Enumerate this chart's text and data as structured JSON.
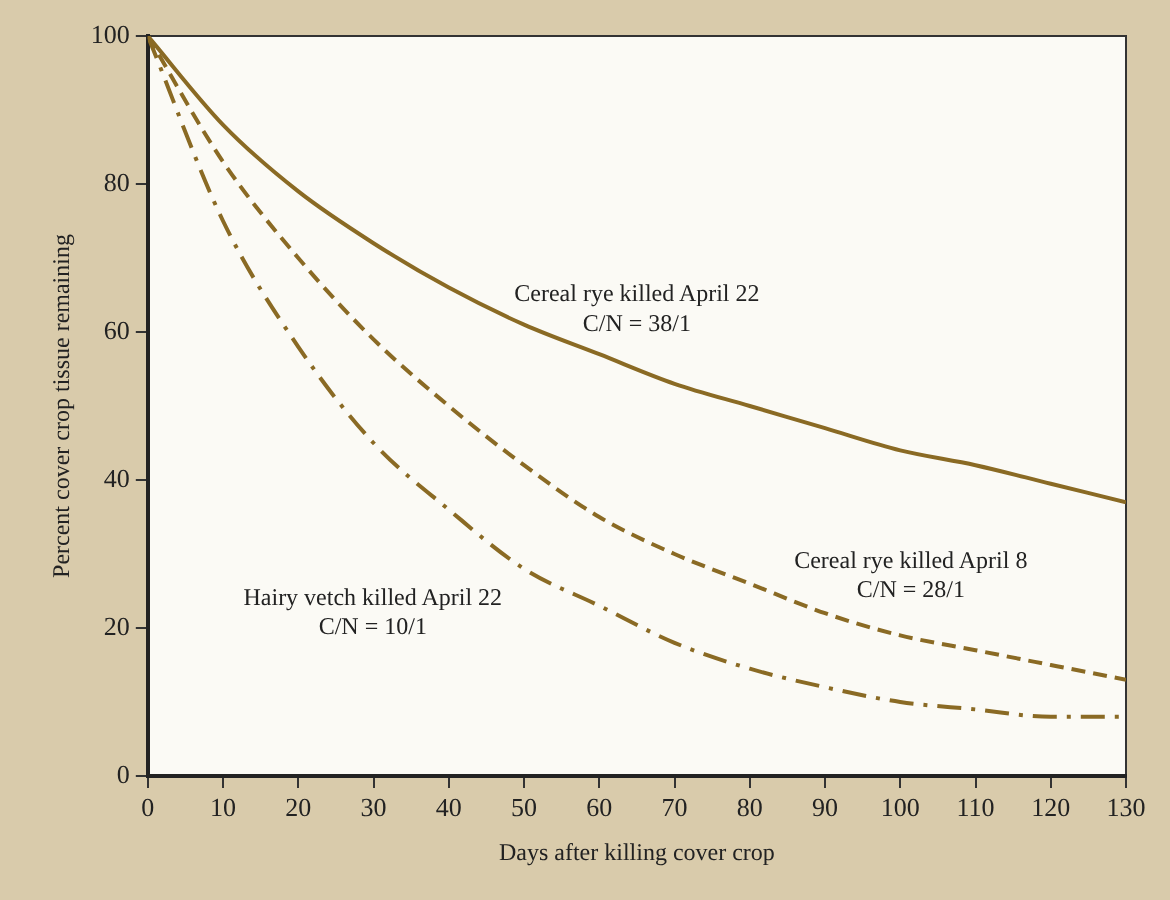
{
  "chart_data": {
    "type": "line",
    "xlabel": "Days after killing cover crop",
    "ylabel": "Percent cover crop tissue remaining",
    "x": [
      0,
      10,
      20,
      30,
      40,
      50,
      60,
      70,
      80,
      90,
      100,
      110,
      120,
      130
    ],
    "series": [
      {
        "color": "#8a6a24",
        "line_style": "solid",
        "values": [
          100,
          88,
          79,
          72,
          66,
          61,
          57,
          53,
          50,
          47,
          44,
          42,
          39.5,
          37
        ]
      },
      {
        "color": "#8a6a24",
        "line_style": "dashed",
        "values": [
          100,
          83,
          70,
          59,
          50,
          42,
          35,
          30,
          26,
          22,
          19,
          17,
          15,
          13
        ]
      },
      {
        "color": "#8a6a24",
        "line_style": "dashdot",
        "values": [
          100,
          75,
          58,
          45,
          36,
          28,
          23,
          18,
          14.5,
          12,
          10,
          9,
          8,
          8
        ]
      }
    ],
    "xlim": [
      0,
      130
    ],
    "xticks": [
      0,
      10,
      20,
      30,
      40,
      50,
      60,
      70,
      80,
      90,
      100,
      110,
      120,
      130
    ],
    "ylim": [
      0,
      100
    ],
    "yticks": [
      0,
      20,
      40,
      60,
      80,
      100
    ],
    "grid": false,
    "legend": false,
    "marker": "none",
    "annotations": [
      "Cereal rye killed April 22",
      "C/N = 38/1",
      "Cereal rye killed April 8",
      "C/N = 28/1",
      "Hairy vetch killed April 22",
      "C/N = 10/1"
    ]
  }
}
